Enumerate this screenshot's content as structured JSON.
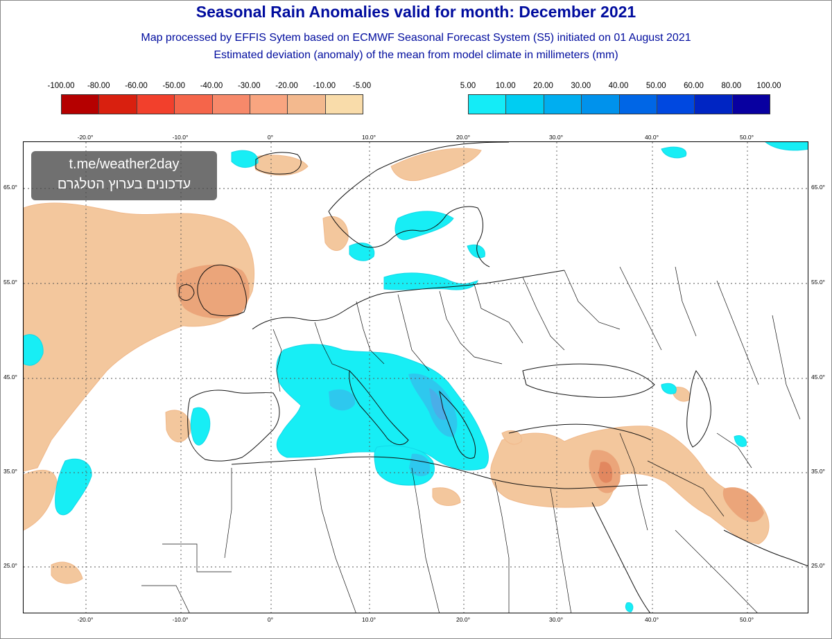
{
  "header": {
    "title": "Seasonal Rain Anomalies valid for month: December 2021",
    "subtitle1": "Map processed by EFFIS Sytem based on ECMWF Seasonal Forecast System (S5) initiated on 01 August 2021",
    "subtitle2": "Estimated deviation (anomaly) of the mean from model climate in millimeters (mm)"
  },
  "legend_negative": {
    "labels": [
      "-100.00",
      "-80.00",
      "-60.00",
      "-50.00",
      "-40.00",
      "-30.00",
      "-20.00",
      "-10.00",
      "-5.00"
    ],
    "colors": [
      "#b50000",
      "#d9200f",
      "#f2402c",
      "#f5654a",
      "#f7896a",
      "#f9a580",
      "#f3b98e",
      "#f9dcaa"
    ]
  },
  "legend_positive": {
    "labels": [
      "5.00",
      "10.00",
      "20.00",
      "30.00",
      "40.00",
      "50.00",
      "60.00",
      "80.00",
      "100.00"
    ],
    "colors": [
      "#14ecf7",
      "#00cdf2",
      "#00aef0",
      "#0092ec",
      "#0066e6",
      "#0048e0",
      "#0025c3",
      "#0800a0"
    ]
  },
  "map": {
    "lon_ticks": [
      "-20.0°",
      "-10.0°",
      "0°",
      "10.0°",
      "20.0°",
      "30.0°",
      "40.0°",
      "50.0°"
    ],
    "lat_ticks": [
      "65.0°",
      "55.0°",
      "45.0°",
      "35.0°",
      "25.0°"
    ],
    "colors": {
      "dry": "#f3c79d",
      "dry_strong": "#eba57a",
      "dry_core": "#e2875f",
      "wet": "#17eef5",
      "wet_mid": "#2ec8ee",
      "wet_strong": "#4aaee8",
      "land_line": "#111111"
    }
  },
  "watermark": {
    "line1": "t.me/weather2day",
    "line2": "עדכונים בערוץ הטלגרם"
  }
}
